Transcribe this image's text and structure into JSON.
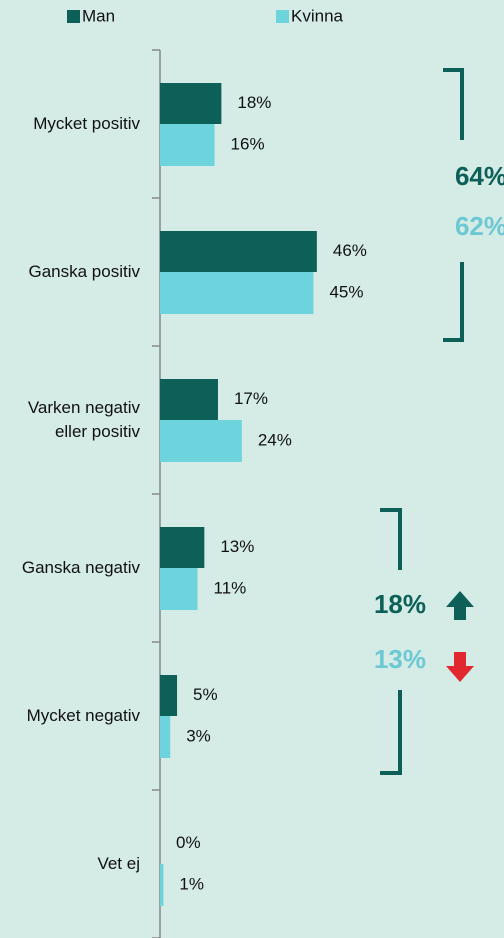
{
  "chart_data": {
    "type": "hbar",
    "categories": [
      "Mycket positiv",
      "Ganska positiv",
      "Varken negativ eller positiv",
      "Ganska negativ",
      "Mycket negativ",
      "Vet ej"
    ],
    "series": [
      {
        "name": "Man",
        "color": "#0d6058",
        "values": [
          18,
          46,
          17,
          13,
          5,
          0
        ],
        "value_labels": [
          "18%",
          "46%",
          "17%",
          "13%",
          "5%",
          "0%"
        ]
      },
      {
        "name": "Kvinna",
        "color": "#6dd3dc",
        "values": [
          16,
          45,
          24,
          11,
          3,
          1
        ],
        "value_labels": [
          "16%",
          "45%",
          "24%",
          "11%",
          "3%",
          "1%"
        ]
      }
    ],
    "xlim": [
      0,
      100
    ],
    "annotations": [
      {
        "text": "64%",
        "color": "#0d6058"
      },
      {
        "text": "62%",
        "color": "#6cc9d4"
      },
      {
        "text": "18%",
        "color": "#0d6058"
      },
      {
        "text": "13%",
        "color": "#6cc9d4"
      }
    ]
  }
}
